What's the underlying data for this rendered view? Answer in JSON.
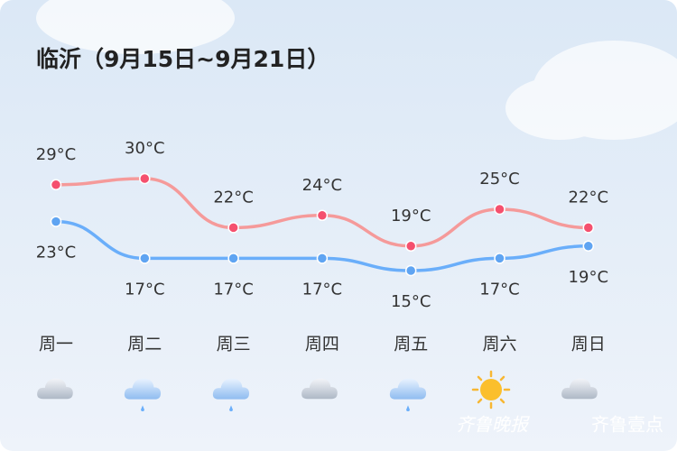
{
  "chart_data": {
    "type": "line",
    "title": "临沂（9月15日~9月21日）",
    "categories": [
      "周一",
      "周二",
      "周三",
      "周四",
      "周五",
      "周六",
      "周日"
    ],
    "series": [
      {
        "color": "#f59a9a",
        "point_color": "#f5506e",
        "values": [
          29,
          30,
          22,
          24,
          19,
          25,
          22
        ],
        "value_labels": [
          "29°C",
          "30°C",
          "22°C",
          "24°C",
          "19°C",
          "25°C",
          "22°C"
        ]
      },
      {
        "color": "#6aaefa",
        "point_color": "#5fa4f2",
        "values": [
          23,
          17,
          17,
          17,
          15,
          17,
          19
        ],
        "value_labels": [
          "23°C",
          "17°C",
          "17°C",
          "17°C",
          "15°C",
          "17°C",
          "19°C"
        ]
      }
    ],
    "watermark": [
      "齐鲁晚报",
      "齐鲁壹点"
    ]
  }
}
